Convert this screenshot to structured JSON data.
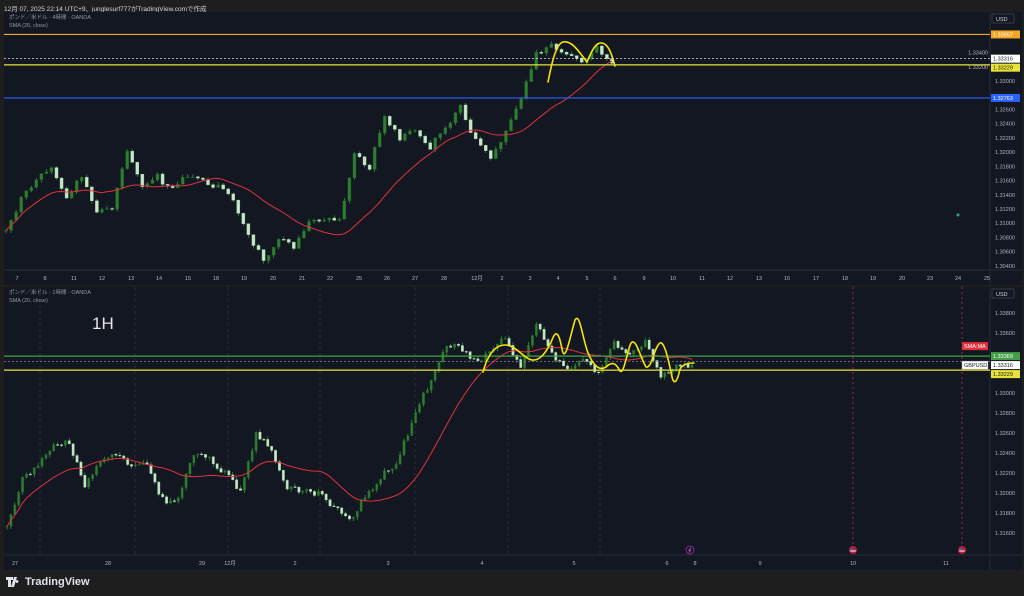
{
  "header": {
    "text": "12月 07, 2025 22:14 UTC+9、junglesurf777がTradingView.comで作成"
  },
  "footer": {
    "brand": "TradingView",
    "logo_icon": "tradingview-logo-icon"
  },
  "colors": {
    "bg": "#131722",
    "up": "#2e7d32",
    "down": "#c8e6c9",
    "wick": "#4caf50",
    "sma": "#e0323c",
    "drawing": "#f5e30a"
  },
  "chart_data": [
    {
      "type": "candlestick",
      "symbol_title": "ポンド／米ドル · 4時間 · OANDA",
      "indicator": "SMA (20, close)",
      "currency": "USD",
      "ylim": [
        1.30341,
        1.33973
      ],
      "yticks": [
        "1.30400",
        "1.30600",
        "1.30800",
        "1.31000",
        "1.31200",
        "1.31400",
        "1.31600",
        "1.31800",
        "1.32000",
        "1.32200",
        "1.32400",
        "1.32600",
        "1.33000",
        "1.33200",
        "1.33400"
      ],
      "xticks": [
        "7",
        "8",
        "11",
        "12",
        "13",
        "14",
        "15",
        "18",
        "19",
        "20",
        "21",
        "22",
        "25",
        "26",
        "27",
        "28",
        "12月",
        "2",
        "3",
        "4",
        "5",
        "6",
        "9",
        "10",
        "11",
        "12",
        "13",
        "16",
        "17",
        "18",
        "19",
        "20",
        "23",
        "24",
        "25"
      ],
      "close_path": [
        1.30946,
        1.31326,
        1.3165,
        1.31777,
        1.31366,
        1.3165,
        1.31143,
        1.31228,
        1.3203,
        1.3151,
        1.3165,
        1.3147,
        1.3168,
        1.3157,
        1.3151,
        1.3133,
        1.308,
        1.3048,
        1.3076,
        1.3066,
        1.31,
        1.3104,
        1.3104,
        1.3199,
        1.3179,
        1.3252,
        1.3217,
        1.3235,
        1.3207,
        1.3235,
        1.3262,
        1.3217,
        1.3193,
        1.3231,
        1.3278,
        1.334,
        1.3348,
        1.3334,
        1.3327,
        1.3347,
        1.3325
      ],
      "hlines": [
        {
          "price": 1.33657,
          "label": "1.33657",
          "color": "#f5a623"
        },
        {
          "price": 1.33316,
          "label": "1.33316",
          "color": "#ffffff",
          "dotted": true
        },
        {
          "price": 1.33229,
          "label": "1.33229",
          "color": "#e8e337"
        },
        {
          "price": 1.32763,
          "label": "1.32763",
          "color": "#2962ff"
        }
      ]
    },
    {
      "type": "candlestick",
      "symbol_title": "ポンド／米ドル · 1時間 · OANDA",
      "indicator": "SMA (20, close)",
      "timeframe_label": "1H",
      "currency": "USD",
      "ylim": [
        1.3138,
        1.3406
      ],
      "yticks": [
        "1.31600",
        "1.31800",
        "1.32000",
        "1.32200",
        "1.32400",
        "1.32600",
        "1.32800",
        "1.33000",
        "1.33600",
        "1.33800"
      ],
      "xticks": [
        "27",
        "28",
        "29",
        "12月",
        "2",
        "3",
        "4",
        "5",
        "6",
        "8",
        "9",
        "10",
        "11"
      ],
      "close_path": [
        1.317,
        1.3213,
        1.323,
        1.3248,
        1.325,
        1.3206,
        1.323,
        1.324,
        1.3228,
        1.3228,
        1.3193,
        1.3193,
        1.324,
        1.3233,
        1.322,
        1.3203,
        1.3258,
        1.3243,
        1.3203,
        1.3203,
        1.32,
        1.3186,
        1.3173,
        1.3196,
        1.3216,
        1.323,
        1.327,
        1.3306,
        1.3343,
        1.3348,
        1.3331,
        1.334,
        1.3356,
        1.3326,
        1.3371,
        1.334,
        1.3321,
        1.3331,
        1.3321,
        1.335,
        1.3338,
        1.335,
        1.3316,
        1.333,
        1.3328
      ],
      "hlines": [
        {
          "price": 1.33369,
          "label": "1.33369",
          "color": "#43a047",
          "tag": "SMA:MA",
          "tag_color": "#e0323c"
        },
        {
          "price": 1.33316,
          "label": "1.33316",
          "color": "#9598a1",
          "dotted": true,
          "tag": "GBPUSD"
        },
        {
          "price": 1.33229,
          "label": "1.33229",
          "color": "#e8e337"
        }
      ],
      "events": [
        "flash-icon",
        "us-flag-icon",
        "us-flag-icon"
      ]
    }
  ]
}
